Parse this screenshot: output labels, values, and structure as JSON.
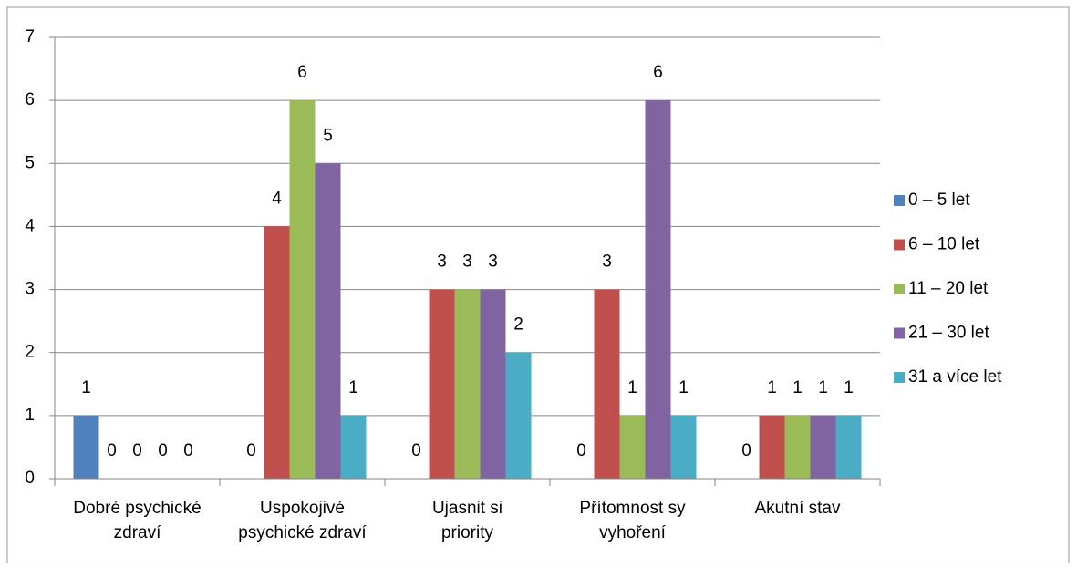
{
  "chart_data": {
    "type": "bar",
    "categories": [
      "Dobré psychické zdraví",
      "Uspokojivé psychické zdraví",
      "Ujasnit si priority",
      "Přítomnost sy vyhoření",
      "Akutní stav"
    ],
    "series": [
      {
        "name": "0 – 5 let",
        "color": "#4f81bd",
        "values": [
          1,
          0,
          0,
          0,
          0
        ]
      },
      {
        "name": "6 – 10 let",
        "color": "#c0504d",
        "values": [
          0,
          4,
          3,
          3,
          1
        ]
      },
      {
        "name": "11 – 20 let",
        "color": "#9bbb59",
        "values": [
          0,
          6,
          3,
          1,
          1
        ]
      },
      {
        "name": "21 – 30 let",
        "color": "#8064a2",
        "values": [
          0,
          5,
          3,
          6,
          1
        ]
      },
      {
        "name": "31  a více let",
        "color": "#4bacc6",
        "values": [
          0,
          1,
          2,
          1,
          1
        ]
      }
    ],
    "ylim": [
      0,
      7
    ],
    "yticks": [
      0,
      1,
      2,
      3,
      4,
      5,
      6,
      7
    ],
    "grid": true,
    "legend": "right"
  }
}
